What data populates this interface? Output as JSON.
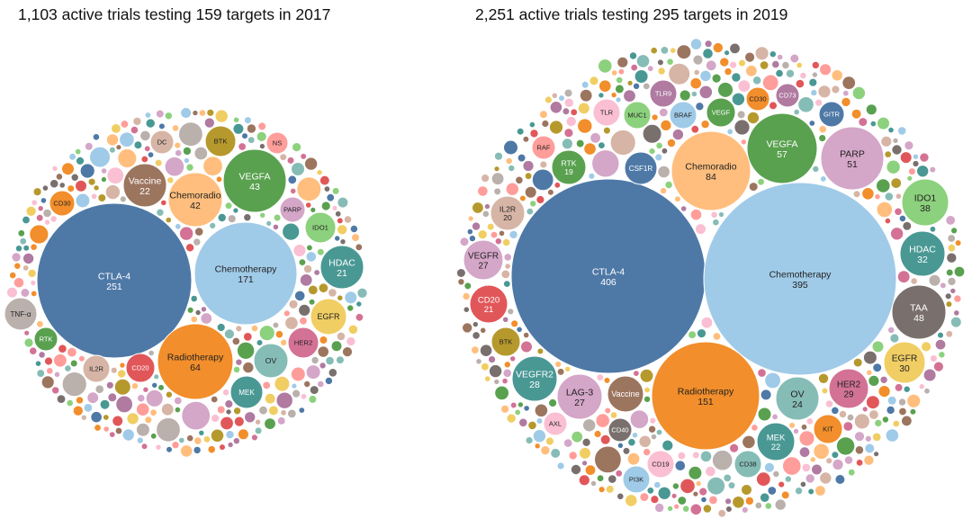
{
  "chart_data": [
    {
      "type": "bubble",
      "title": "1,103 active trials testing 159 targets in 2017",
      "labeled_bubbles": [
        {
          "name": "CTLA-4",
          "value": 251,
          "color": "#4e79a7"
        },
        {
          "name": "Chemotherapy",
          "value": 171,
          "color": "#a0cbe8"
        },
        {
          "name": "Radiotherapy",
          "value": 64,
          "color": "#f28e2b"
        },
        {
          "name": "VEGFA",
          "value": 43,
          "color": "#59a14f"
        },
        {
          "name": "Chemoradio",
          "value": 42,
          "color": "#ffbe7d"
        },
        {
          "name": "Vaccine",
          "value": 22,
          "color": "#9c755f"
        },
        {
          "name": "HDAC",
          "value": 21,
          "color": "#499894"
        },
        {
          "name": "CD30",
          "color": "#f28e2b"
        },
        {
          "name": "DC",
          "color": "#d7b5a6"
        },
        {
          "name": "BTK",
          "color": "#b6992d"
        },
        {
          "name": "NS",
          "color": "#ff9d9a"
        },
        {
          "name": "PARP",
          "color": "#d4a6c8"
        },
        {
          "name": "IDO1",
          "color": "#8cd17d"
        },
        {
          "name": "EGFR",
          "color": "#f1ce63"
        },
        {
          "name": "HER2",
          "color": "#d37295"
        },
        {
          "name": "OV",
          "color": "#86bcb6"
        },
        {
          "name": "MEK",
          "color": "#499894"
        },
        {
          "name": "CD20",
          "color": "#e15759"
        },
        {
          "name": "IL2R",
          "color": "#d7b5a6"
        },
        {
          "name": "RTK",
          "color": "#59a14f"
        },
        {
          "name": "TNF-α",
          "color": "#bab0ac"
        }
      ]
    },
    {
      "type": "bubble",
      "title": "2,251 active trials testing 295 targets in 2019",
      "labeled_bubbles": [
        {
          "name": "CTLA-4",
          "value": 406,
          "color": "#4e79a7"
        },
        {
          "name": "Chemotherapy",
          "value": 395,
          "color": "#a0cbe8"
        },
        {
          "name": "Radiotherapy",
          "value": 151,
          "color": "#f28e2b"
        },
        {
          "name": "Chemoradio",
          "value": 84,
          "color": "#ffbe7d"
        },
        {
          "name": "VEGFA",
          "value": 57,
          "color": "#59a14f"
        },
        {
          "name": "PARP",
          "value": 51,
          "color": "#d4a6c8"
        },
        {
          "name": "TAA",
          "value": 48,
          "color": "#79706e"
        },
        {
          "name": "IDO1",
          "value": 38,
          "color": "#8cd17d"
        },
        {
          "name": "HDAC",
          "value": 32,
          "color": "#499894"
        },
        {
          "name": "EGFR",
          "value": 30,
          "color": "#f1ce63"
        },
        {
          "name": "HER2",
          "value": 29,
          "color": "#d37295"
        },
        {
          "name": "VEGFR2",
          "value": 28,
          "color": "#499894"
        },
        {
          "name": "VEGFR",
          "value": 27,
          "color": "#d4a6c8"
        },
        {
          "name": "LAG-3",
          "value": 27,
          "color": "#d4a6c8"
        },
        {
          "name": "OV",
          "value": 24,
          "color": "#86bcb6"
        },
        {
          "name": "MEK",
          "value": 22,
          "color": "#499894"
        },
        {
          "name": "CD20",
          "value": 21,
          "color": "#e15759"
        },
        {
          "name": "IL2R",
          "value": 20,
          "color": "#d7b5a6"
        },
        {
          "name": "RTK",
          "value": 19,
          "color": "#59a14f"
        },
        {
          "name": "TLR9",
          "color": "#b07aa1"
        },
        {
          "name": "CD73",
          "color": "#b07aa1"
        },
        {
          "name": "TLR",
          "color": "#fabfd2"
        },
        {
          "name": "MUC1",
          "color": "#8cd17d"
        },
        {
          "name": "BRAF",
          "color": "#a0cbe8"
        },
        {
          "name": "VEGF",
          "color": "#59a14f"
        },
        {
          "name": "CD30",
          "color": "#f28e2b"
        },
        {
          "name": "GITR",
          "color": "#4e79a7"
        },
        {
          "name": "RAF",
          "color": "#ff9d9a"
        },
        {
          "name": "CSF1R",
          "color": "#4e79a7"
        },
        {
          "name": "BTK",
          "color": "#b6992d"
        },
        {
          "name": "Vaccine",
          "color": "#9c755f"
        },
        {
          "name": "AXL",
          "color": "#fabfd2"
        },
        {
          "name": "CD40",
          "color": "#79706e"
        },
        {
          "name": "CD19",
          "color": "#fabfd2"
        },
        {
          "name": "CD38",
          "color": "#86bcb6"
        },
        {
          "name": "PI3K",
          "color": "#a0cbe8"
        },
        {
          "name": "KIT",
          "color": "#f28e2b"
        }
      ]
    }
  ]
}
